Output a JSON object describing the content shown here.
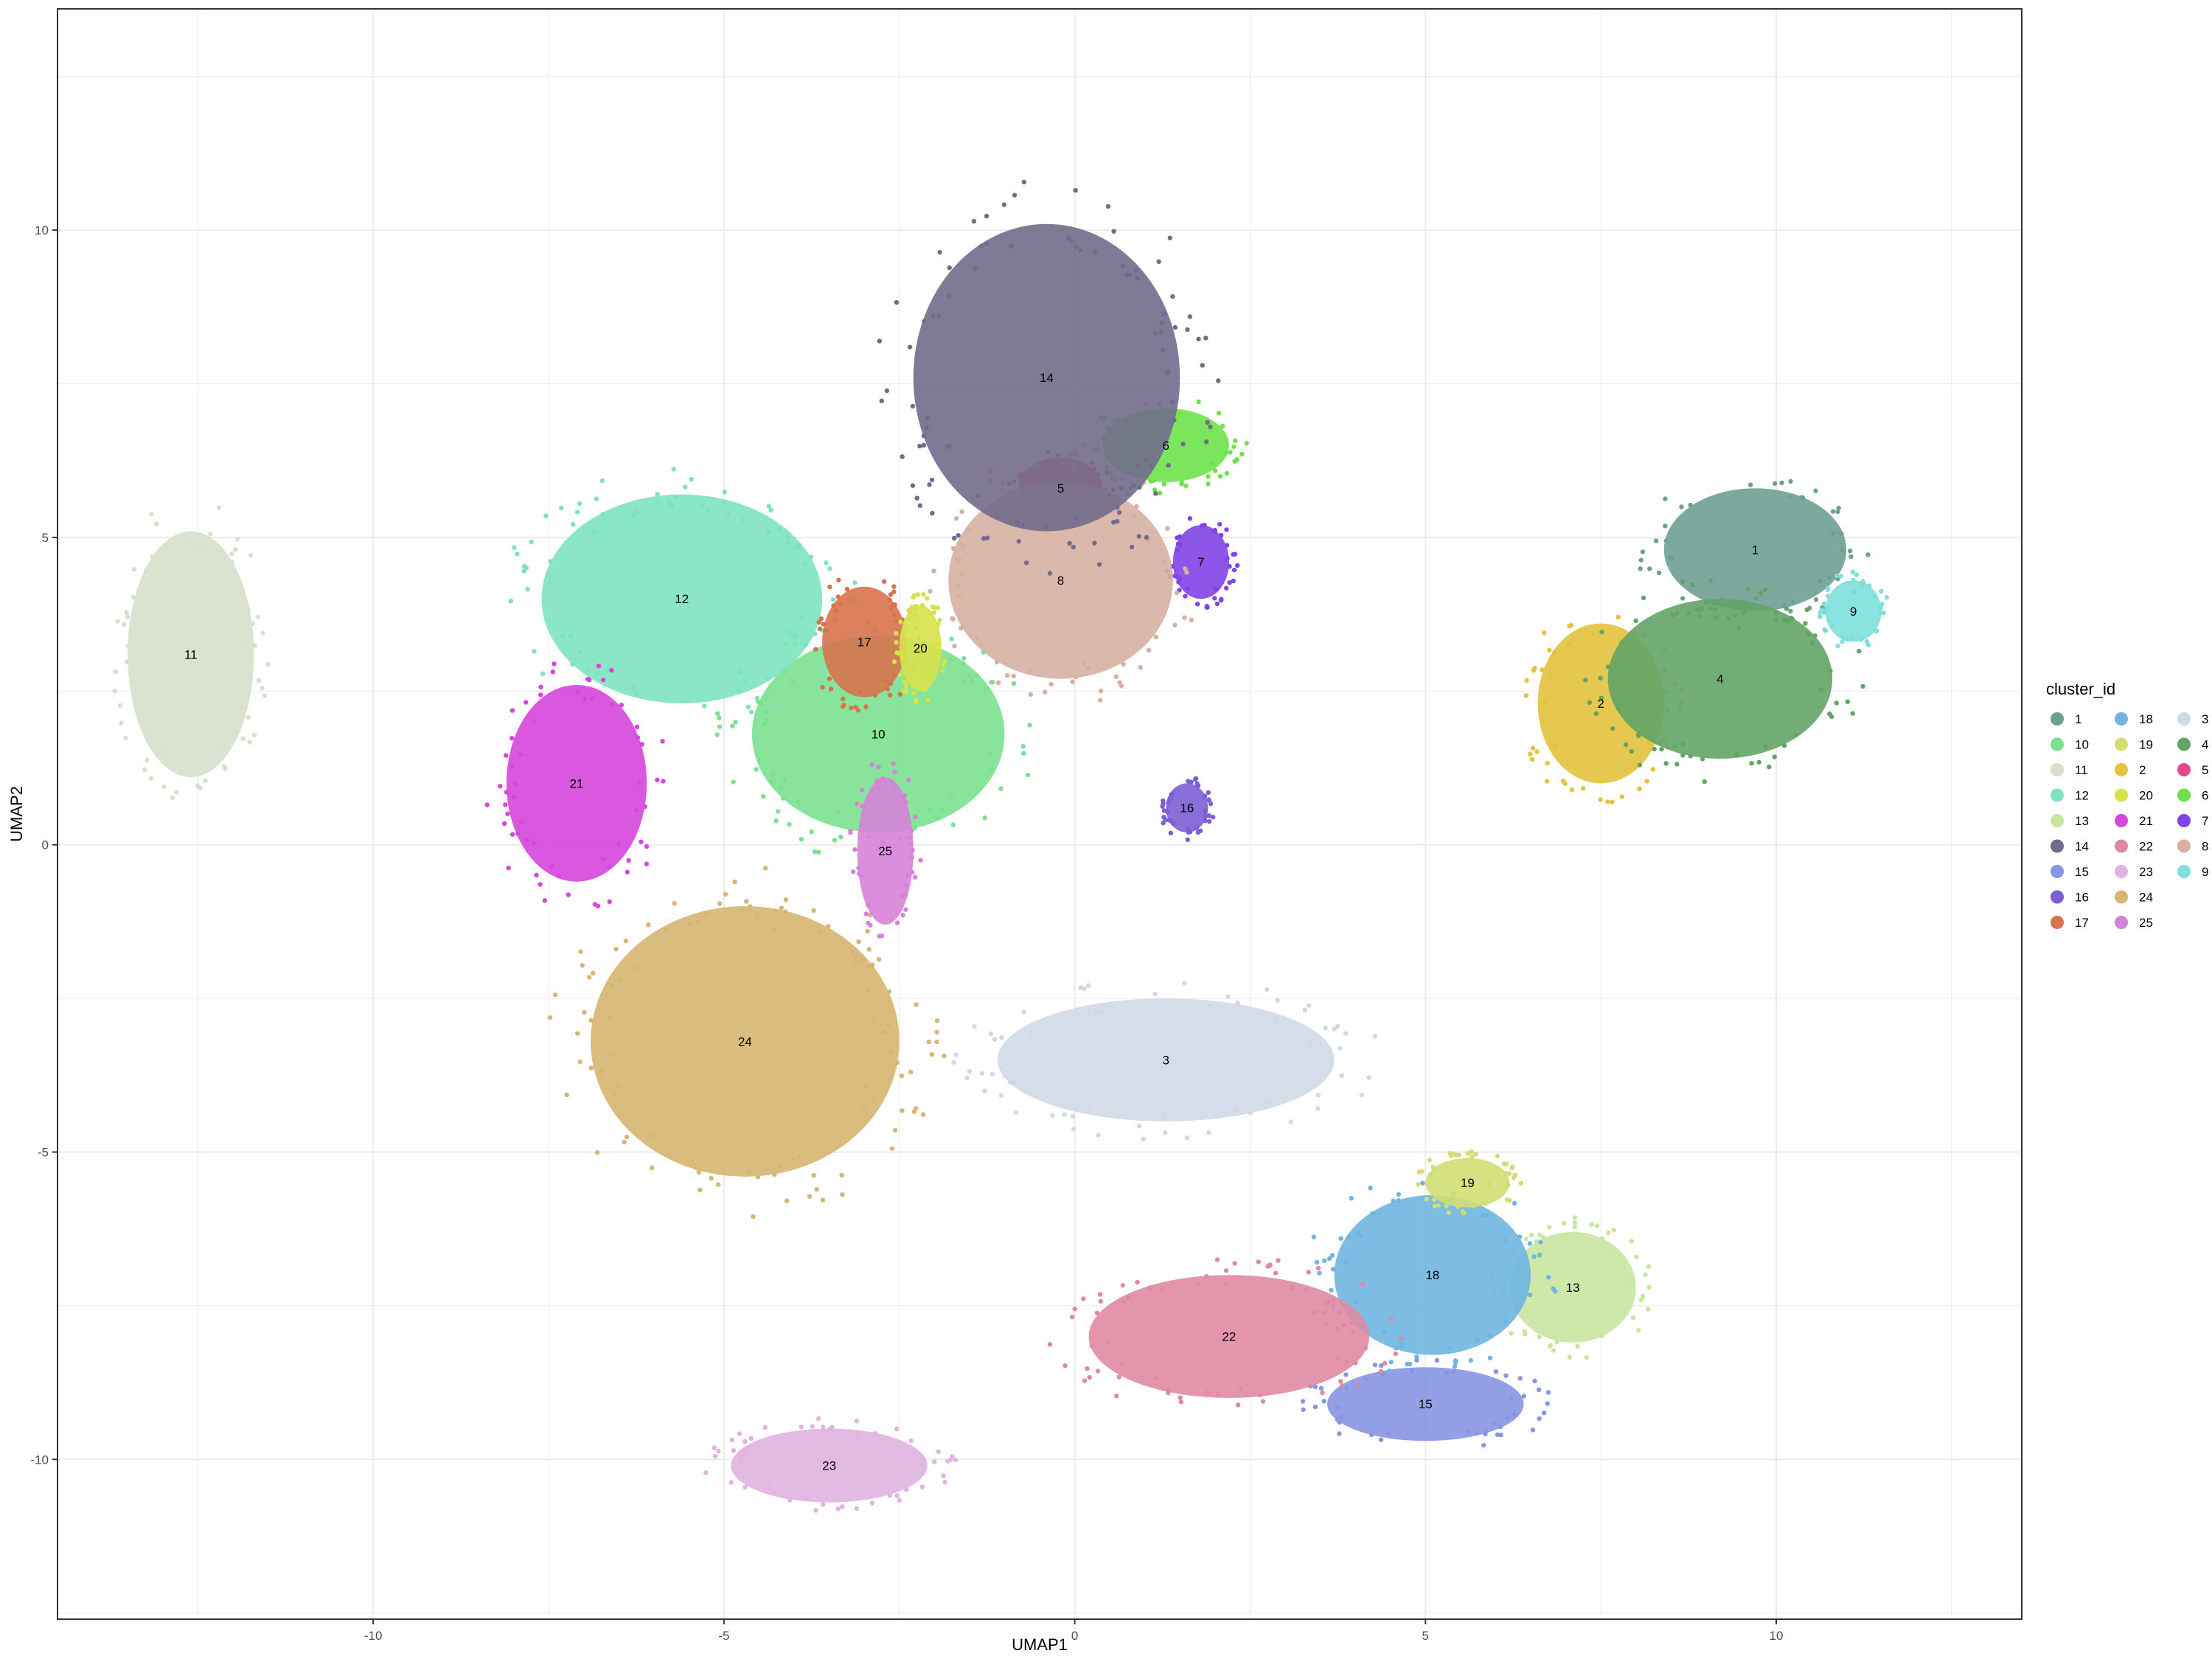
{
  "chart_data": {
    "type": "scatter",
    "title": "",
    "xlabel": "UMAP1",
    "ylabel": "UMAP2",
    "xlim": [
      -14.5,
      13.5
    ],
    "ylim": [
      -12.6,
      13.6
    ],
    "x_ticks": [
      -10,
      -5,
      0,
      5,
      10
    ],
    "y_ticks": [
      -10,
      -5,
      0,
      5,
      10
    ],
    "x_tick_labels": [
      "-10",
      "-5",
      "0",
      "5",
      "10"
    ],
    "y_tick_labels": [
      "-10",
      "-5",
      "0",
      "5",
      "10"
    ],
    "grid": true,
    "legend_position": "right",
    "legend": {
      "title": "cluster_id",
      "columns": [
        [
          {
            "label": "1",
            "color": "#6F9E93"
          },
          {
            "label": "10",
            "color": "#7BE190"
          },
          {
            "label": "11",
            "color": "#D6E0CB"
          },
          {
            "label": "12",
            "color": "#7DE3BE"
          },
          {
            "label": "13",
            "color": "#C9E6A0"
          },
          {
            "label": "14",
            "color": "#726B8C"
          },
          {
            "label": "15",
            "color": "#8896E2"
          },
          {
            "label": "16",
            "color": "#7C5FD6"
          },
          {
            "label": "17",
            "color": "#D8724C"
          }
        ],
        [
          {
            "label": "18",
            "color": "#6FB5E0"
          },
          {
            "label": "19",
            "color": "#D2DE72"
          },
          {
            "label": "2",
            "color": "#E3C23D"
          },
          {
            "label": "20",
            "color": "#D6E24A"
          },
          {
            "label": "21",
            "color": "#D646DD"
          },
          {
            "label": "22",
            "color": "#E08AA2"
          },
          {
            "label": "23",
            "color": "#E0B3E0"
          },
          {
            "label": "24",
            "color": "#D6B670"
          },
          {
            "label": "25",
            "color": "#D682D8"
          }
        ],
        [
          {
            "label": "3",
            "color": "#D0D9E6"
          },
          {
            "label": "4",
            "color": "#62A466"
          },
          {
            "label": "5",
            "color": "#E04A8B"
          },
          {
            "label": "6",
            "color": "#6DE24A"
          },
          {
            "label": "7",
            "color": "#8044E6"
          },
          {
            "label": "8",
            "color": "#D6B0A3"
          },
          {
            "label": "9",
            "color": "#7DE0DA"
          }
        ]
      ]
    },
    "clusters": [
      {
        "id": "1",
        "color": "#6F9E93",
        "center": [
          9.7,
          4.8
        ],
        "label": "1"
      },
      {
        "id": "2",
        "color": "#E3C23D",
        "center": [
          7.5,
          2.3
        ],
        "label": "2"
      },
      {
        "id": "3",
        "color": "#D0D9E6",
        "center": [
          1.3,
          -3.5
        ],
        "label": "3"
      },
      {
        "id": "4",
        "color": "#62A466",
        "center": [
          9.2,
          2.7
        ],
        "label": "4"
      },
      {
        "id": "5",
        "color": "#E04A8B",
        "center": [
          -0.2,
          5.8
        ],
        "label": "5"
      },
      {
        "id": "6",
        "color": "#6DE24A",
        "center": [
          1.3,
          6.5
        ],
        "label": "6"
      },
      {
        "id": "7",
        "color": "#8044E6",
        "center": [
          1.8,
          4.6
        ],
        "label": "7"
      },
      {
        "id": "8",
        "color": "#D6B0A3",
        "center": [
          -0.2,
          4.3
        ],
        "label": "8"
      },
      {
        "id": "9",
        "color": "#7DE0DA",
        "center": [
          11.1,
          3.8
        ],
        "label": "9"
      },
      {
        "id": "10",
        "color": "#7BE190",
        "center": [
          -2.8,
          1.8
        ],
        "label": "10"
      },
      {
        "id": "11",
        "color": "#D6E0CB",
        "center": [
          -12.6,
          3.1
        ],
        "label": "11"
      },
      {
        "id": "12",
        "color": "#7DE3BE",
        "center": [
          -5.6,
          4.0
        ],
        "label": "12"
      },
      {
        "id": "13",
        "color": "#C9E6A0",
        "center": [
          7.1,
          -7.2
        ],
        "label": "13"
      },
      {
        "id": "14",
        "color": "#726B8C",
        "center": [
          -0.4,
          7.6
        ],
        "label": "14"
      },
      {
        "id": "15",
        "color": "#8896E2",
        "center": [
          5.0,
          -9.1
        ],
        "label": "15"
      },
      {
        "id": "16",
        "color": "#7C5FD6",
        "center": [
          1.6,
          0.6
        ],
        "label": "16"
      },
      {
        "id": "17",
        "color": "#D8724C",
        "center": [
          -3.0,
          3.3
        ],
        "label": "17"
      },
      {
        "id": "18",
        "color": "#6FB5E0",
        "center": [
          5.1,
          -7.0
        ],
        "label": "18"
      },
      {
        "id": "19",
        "color": "#D2DE72",
        "center": [
          5.6,
          -5.5
        ],
        "label": "19"
      },
      {
        "id": "20",
        "color": "#D6E24A",
        "center": [
          -2.2,
          3.2
        ],
        "label": "20"
      },
      {
        "id": "21",
        "color": "#D646DD",
        "center": [
          -7.1,
          1.0
        ],
        "label": "21"
      },
      {
        "id": "22",
        "color": "#E08AA2",
        "center": [
          2.2,
          -8.0
        ],
        "label": "22"
      },
      {
        "id": "23",
        "color": "#E0B3E0",
        "center": [
          -3.5,
          -10.1
        ],
        "label": "23"
      },
      {
        "id": "24",
        "color": "#D6B670",
        "center": [
          -4.7,
          -3.2
        ],
        "label": "24"
      },
      {
        "id": "25",
        "color": "#D682D8",
        "center": [
          -2.7,
          -0.1
        ],
        "label": "25"
      }
    ]
  }
}
